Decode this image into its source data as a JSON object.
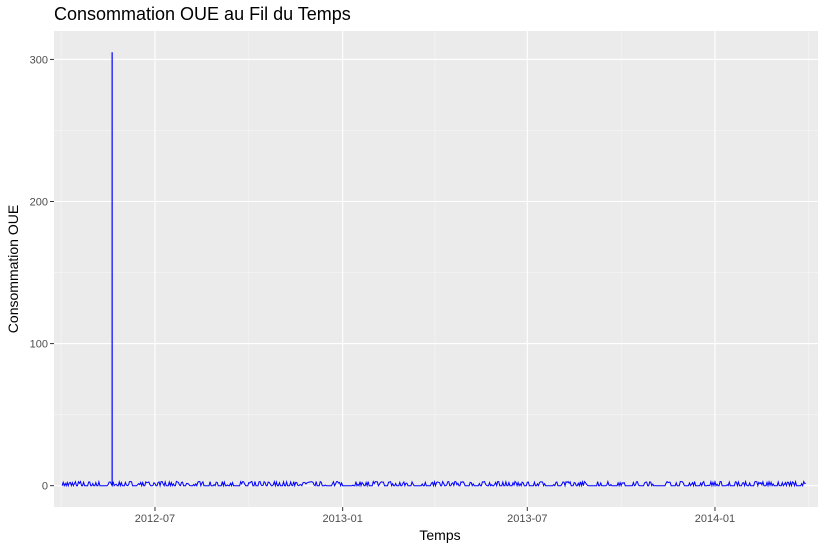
{
  "chart_data": {
    "type": "line",
    "title": "Consommation OUE au Fil du Temps",
    "xlabel": "Temps",
    "ylabel": "Consommation OUE",
    "x_ticks": [
      "2012-07",
      "2013-01",
      "2013-07",
      "2014-01"
    ],
    "y_ticks": [
      0,
      100,
      200,
      300
    ],
    "xlim": [
      "2012-03-24",
      "2014-04-12"
    ],
    "ylim": [
      -15,
      320
    ],
    "grid": true,
    "line_color": "#0000ff",
    "panel_color": "#ebebeb",
    "series": [
      {
        "x_start": "2012-04-01",
        "x_end": "2014-03-31",
        "baseline": 0,
        "typical_max": 3,
        "spikes": [
          {
            "date": "2012-05-20",
            "value": 305
          }
        ]
      }
    ]
  }
}
